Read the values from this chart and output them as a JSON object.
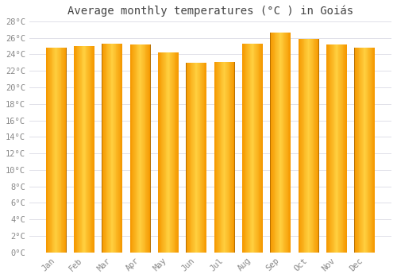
{
  "title": "Average monthly temperatures (°C ) in Goiás",
  "months": [
    "Jan",
    "Feb",
    "Mar",
    "Apr",
    "May",
    "Jun",
    "Jul",
    "Aug",
    "Sep",
    "Oct",
    "Nov",
    "Dec"
  ],
  "values": [
    24.8,
    25.0,
    25.3,
    25.2,
    24.2,
    23.0,
    23.1,
    25.3,
    26.6,
    25.9,
    25.2,
    24.8
  ],
  "bar_color_center": "#FFD040",
  "bar_color_edge": "#F59800",
  "bar_border_color": "#B87000",
  "ylim": [
    0,
    28
  ],
  "yticks": [
    0,
    2,
    4,
    6,
    8,
    10,
    12,
    14,
    16,
    18,
    20,
    22,
    24,
    26,
    28
  ],
  "ytick_labels": [
    "0°C",
    "2°C",
    "4°C",
    "6°C",
    "8°C",
    "10°C",
    "12°C",
    "14°C",
    "16°C",
    "18°C",
    "20°C",
    "22°C",
    "24°C",
    "26°C",
    "28°C"
  ],
  "background_color": "#ffffff",
  "grid_color": "#e0e0e8",
  "title_fontsize": 10,
  "tick_fontsize": 7.5,
  "tick_font_color": "#888888",
  "n_gradient_slices": 30
}
